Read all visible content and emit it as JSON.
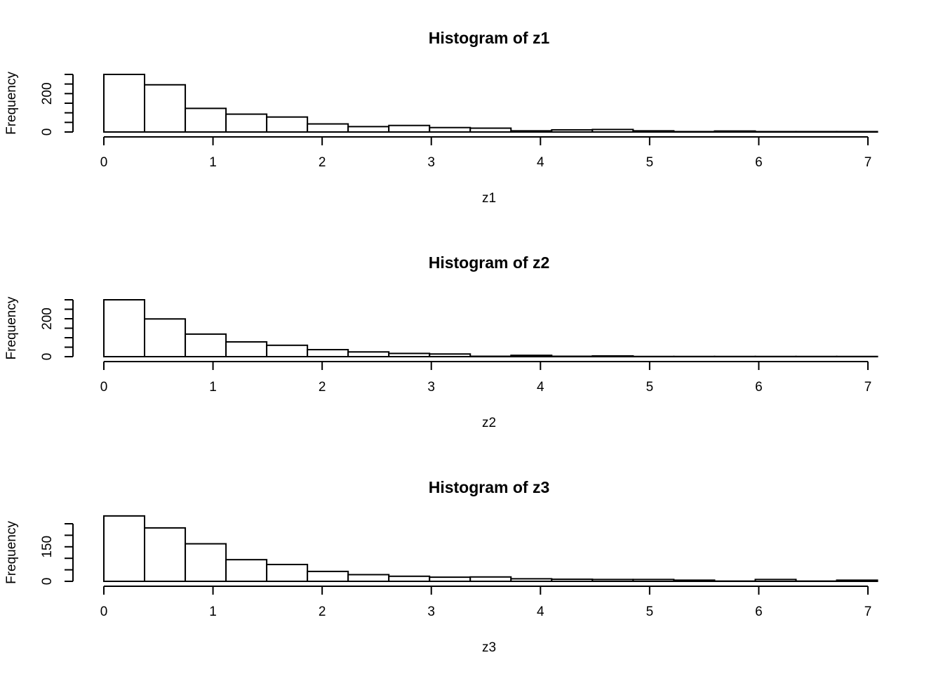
{
  "colors": {
    "bar_fill": "#ffffff",
    "bar_stroke": "#000000",
    "background": "#ffffff"
  },
  "chart_data": [
    {
      "type": "bar",
      "title": "Histogram of z1",
      "xlabel": "z1",
      "ylabel": "Frequency",
      "xlim": [
        0,
        7
      ],
      "x_ticks": [
        "0",
        "1",
        "2",
        "3",
        "4",
        "5",
        "6",
        "7"
      ],
      "ylim": [
        0,
        300
      ],
      "y_tick_labels": [
        "0",
        "200"
      ],
      "y_minor_ticks": [
        0,
        50,
        100,
        150,
        200,
        250,
        300
      ],
      "bin_edges": [
        0,
        0.373,
        0.746,
        1.119,
        1.492,
        1.865,
        2.238,
        2.611,
        2.984,
        3.357,
        3.73,
        4.103,
        4.476,
        4.849,
        5.222,
        5.595,
        5.968,
        6.341,
        6.714,
        7.087
      ],
      "values": [
        300,
        246,
        123,
        93,
        78,
        42,
        28,
        34,
        23,
        20,
        6,
        11,
        13,
        6,
        2,
        5,
        2,
        2,
        2
      ],
      "grid": false
    },
    {
      "type": "bar",
      "title": "Histogram of z2",
      "xlabel": "z2",
      "ylabel": "Frequency",
      "xlim": [
        0,
        7
      ],
      "x_ticks": [
        "0",
        "1",
        "2",
        "3",
        "4",
        "5",
        "6",
        "7"
      ],
      "ylim": [
        0,
        300
      ],
      "y_tick_labels": [
        "0",
        "200"
      ],
      "y_minor_ticks": [
        0,
        50,
        100,
        150,
        200,
        250,
        300
      ],
      "bin_edges": [
        0,
        0.373,
        0.746,
        1.119,
        1.492,
        1.865,
        2.238,
        2.611,
        2.984,
        3.357,
        3.73,
        4.103,
        4.476,
        4.849,
        5.222,
        5.595,
        5.968,
        6.341,
        6.714,
        7.087
      ],
      "values": [
        300,
        199,
        119,
        78,
        60,
        37,
        25,
        17,
        14,
        2,
        7,
        2,
        4,
        1,
        1,
        1,
        1,
        1,
        1
      ],
      "grid": false
    },
    {
      "type": "bar",
      "title": "Histogram of z3",
      "xlabel": "z3",
      "ylabel": "Frequency",
      "xlim": [
        0,
        7
      ],
      "x_ticks": [
        "0",
        "1",
        "2",
        "3",
        "4",
        "5",
        "6",
        "7"
      ],
      "ylim": [
        0,
        250
      ],
      "y_tick_labels": [
        "0",
        "150"
      ],
      "y_minor_ticks": [
        0,
        50,
        100,
        150,
        200,
        250
      ],
      "bin_edges": [
        0,
        0.373,
        0.746,
        1.119,
        1.492,
        1.865,
        2.238,
        2.611,
        2.984,
        3.357,
        3.73,
        4.103,
        4.476,
        4.849,
        5.222,
        5.595,
        5.968,
        6.341,
        6.714,
        7.087
      ],
      "values": [
        284,
        232,
        163,
        94,
        73,
        43,
        29,
        22,
        18,
        19,
        11,
        9,
        8,
        8,
        5,
        1,
        8,
        1,
        5
      ],
      "grid": false
    }
  ]
}
